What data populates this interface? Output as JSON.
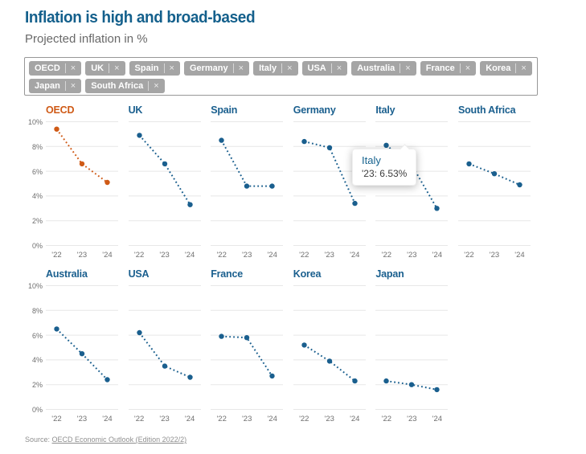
{
  "header": {
    "title": "Inflation is high and broad-based",
    "subtitle": "Projected inflation in %"
  },
  "filter": {
    "tags": [
      "OECD",
      "UK",
      "Spain",
      "Germany",
      "Italy",
      "USA",
      "Australia",
      "France",
      "Korea",
      "Japan",
      "South Africa"
    ],
    "remove_icon": "×"
  },
  "chart_data": {
    "type": "line",
    "layout": "small-multiples",
    "style": "dotted-line-with-point-markers",
    "x": [
      "'22",
      "'23",
      "'24"
    ],
    "ylim": [
      0,
      10
    ],
    "yticks": [
      "10%",
      "8%",
      "6%",
      "4%",
      "2%",
      "0%"
    ],
    "grid": true,
    "rows": [
      [
        "OECD",
        "UK",
        "Spain",
        "Germany",
        "Italy",
        "South Africa"
      ],
      [
        "Australia",
        "USA",
        "France",
        "Korea",
        "Japan"
      ]
    ],
    "series": [
      {
        "name": "OECD",
        "values": [
          9.4,
          6.6,
          5.1
        ],
        "color": "#cf5a16"
      },
      {
        "name": "UK",
        "values": [
          8.9,
          6.6,
          3.3
        ],
        "color": "#1a5f8e"
      },
      {
        "name": "Spain",
        "values": [
          8.5,
          4.8,
          4.8
        ],
        "color": "#1a5f8e"
      },
      {
        "name": "Germany",
        "values": [
          8.4,
          7.9,
          3.4
        ],
        "color": "#1a5f8e"
      },
      {
        "name": "Italy",
        "values": [
          8.1,
          6.53,
          3.0
        ],
        "color": "#1a5f8e"
      },
      {
        "name": "South Africa",
        "values": [
          6.6,
          5.8,
          4.9
        ],
        "color": "#1a5f8e"
      },
      {
        "name": "Australia",
        "values": [
          6.5,
          4.5,
          2.4
        ],
        "color": "#1a5f8e"
      },
      {
        "name": "USA",
        "values": [
          6.2,
          3.5,
          2.6
        ],
        "color": "#1a5f8e"
      },
      {
        "name": "France",
        "values": [
          5.9,
          5.8,
          2.7
        ],
        "color": "#1a5f8e"
      },
      {
        "name": "Korea",
        "values": [
          5.2,
          3.9,
          2.3
        ],
        "color": "#1a5f8e"
      },
      {
        "name": "Japan",
        "values": [
          2.3,
          2.0,
          1.6
        ],
        "color": "#1a5f8e"
      }
    ]
  },
  "tooltip": {
    "title": "Italy",
    "value_line": "'23: 6.53%"
  },
  "footer": {
    "source_label": "Source: ",
    "source_link": "OECD Economic Outlook (Edition 2022/2)"
  },
  "colors": {
    "accent_blue": "#14608c",
    "line_blue": "#1a5f8e",
    "line_orange": "#cf5a16",
    "gridline": "#e7e7e7"
  }
}
